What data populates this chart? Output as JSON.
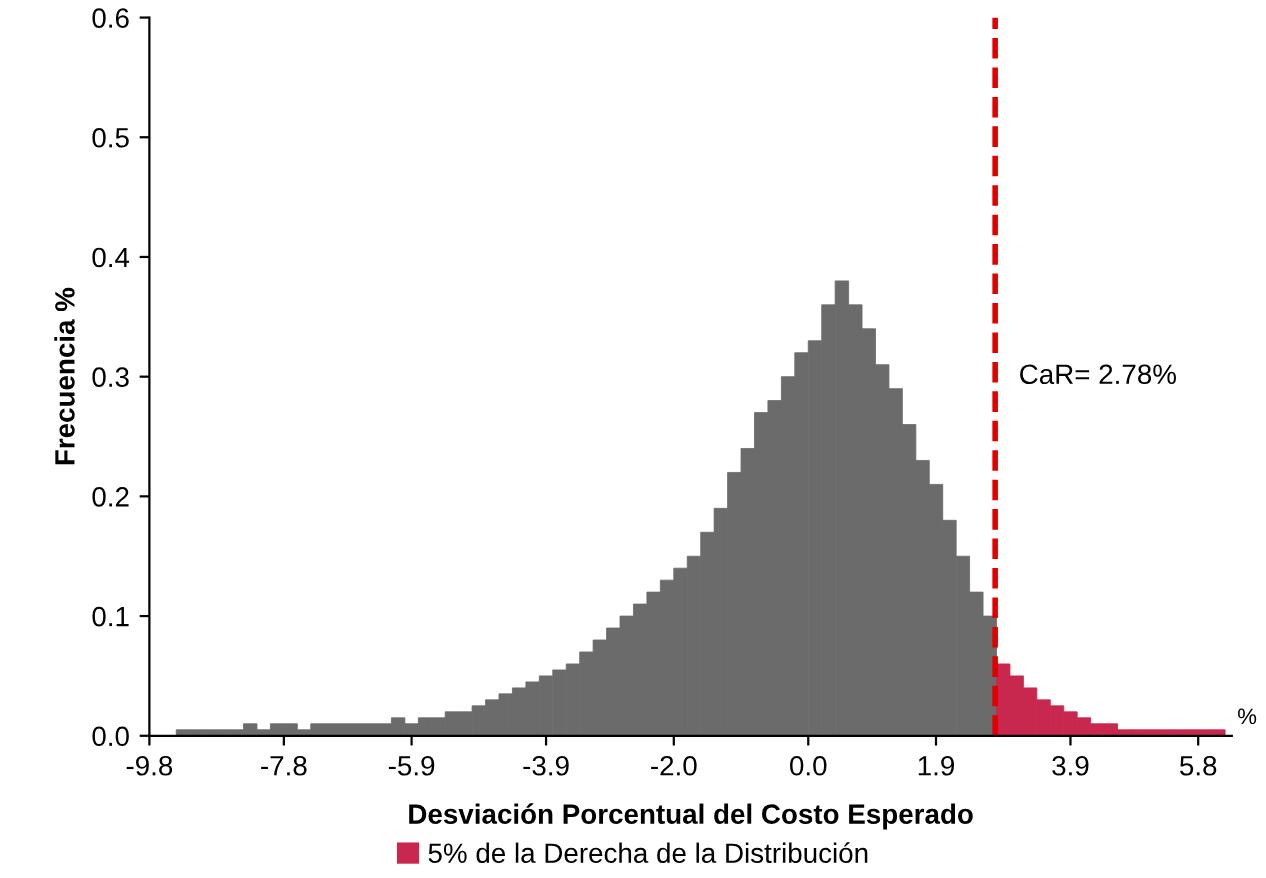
{
  "chart_data": {
    "type": "histogram",
    "xlabel": "Desviación Porcentual del Costo Esperado",
    "ylabel": "Frecuencia %",
    "bins": [
      -9.8,
      -9.6,
      -9.4,
      -9.2,
      -9.0,
      -8.8,
      -8.6,
      -8.4,
      -8.2,
      -8.0,
      -7.8,
      -7.6,
      -7.4,
      -7.2,
      -7.0,
      -6.8,
      -6.6,
      -6.4,
      -6.2,
      -6.0,
      -5.8,
      -5.6,
      -5.4,
      -5.2,
      -5.0,
      -4.8,
      -4.6,
      -4.4,
      -4.2,
      -4.0,
      -3.8,
      -3.6,
      -3.4,
      -3.2,
      -3.0,
      -2.8,
      -2.6,
      -2.4,
      -2.2,
      -2.0,
      -1.8,
      -1.6,
      -1.4,
      -1.2,
      -1.0,
      -0.8,
      -0.6,
      -0.4,
      -0.2,
      0.0,
      0.2,
      0.4,
      0.6,
      0.8,
      1.0,
      1.2,
      1.4,
      1.6,
      1.8,
      2.0,
      2.2,
      2.4,
      2.6,
      2.8,
      3.0,
      3.2,
      3.4,
      3.6,
      3.8,
      4.0,
      4.2,
      4.4,
      4.6,
      4.8,
      5.0,
      5.2,
      5.4,
      5.6,
      5.8,
      6.0,
      6.2
    ],
    "series": [
      {
        "color": "#6b6b6b",
        "values": [
          0,
          0,
          0.005,
          0.005,
          0.005,
          0.005,
          0.005,
          0.01,
          0.005,
          0.01,
          0.01,
          0.005,
          0.01,
          0.01,
          0.01,
          0.01,
          0.01,
          0.01,
          0.015,
          0.01,
          0.015,
          0.015,
          0.02,
          0.02,
          0.025,
          0.03,
          0.035,
          0.04,
          0.045,
          0.05,
          0.055,
          0.06,
          0.07,
          0.08,
          0.09,
          0.1,
          0.11,
          0.12,
          0.13,
          0.14,
          0.15,
          0.17,
          0.19,
          0.22,
          0.24,
          0.27,
          0.28,
          0.3,
          0.32,
          0.33,
          0.36,
          0.38,
          0.36,
          0.34,
          0.31,
          0.29,
          0.26,
          0.23,
          0.21,
          0.18,
          0.15,
          0.12,
          0.1,
          null,
          null,
          null,
          null,
          null,
          null,
          null,
          null,
          null,
          null,
          null,
          null,
          null,
          null,
          null,
          null,
          null
        ]
      },
      {
        "name": "5% de la Derecha de la Distribución",
        "color": "#c8284e",
        "values": [
          null,
          null,
          null,
          null,
          null,
          null,
          null,
          null,
          null,
          null,
          null,
          null,
          null,
          null,
          null,
          null,
          null,
          null,
          null,
          null,
          null,
          null,
          null,
          null,
          null,
          null,
          null,
          null,
          null,
          null,
          null,
          null,
          null,
          null,
          null,
          null,
          null,
          null,
          null,
          null,
          null,
          null,
          null,
          null,
          null,
          null,
          null,
          null,
          null,
          null,
          null,
          null,
          null,
          null,
          null,
          null,
          null,
          null,
          null,
          null,
          null,
          null,
          null,
          0.06,
          0.05,
          0.04,
          0.03,
          0.025,
          0.02,
          0.015,
          0.01,
          0.01,
          0.005,
          0.005,
          0.005,
          0.005,
          0.005,
          0.005,
          0.005,
          0.005
        ]
      }
    ],
    "xlim": [
      -9.8,
      6.3
    ],
    "xticks": [
      -9.8,
      -7.8,
      -5.9,
      -3.9,
      {
        "value": -2.0,
        "label": "-2.0"
      },
      {
        "value": 0,
        "label": "0.0"
      },
      1.9,
      3.9,
      5.8
    ],
    "ylim": [
      0,
      0.6
    ],
    "yticks": [
      {
        "value": 0,
        "label": "0.0"
      },
      0.1,
      0.2,
      0.3,
      0.4,
      0.5,
      0.6
    ],
    "ref_lines": [
      {
        "axis": "x",
        "value": 2.78,
        "label": "CaR= 2.78%",
        "color": "#e00000",
        "line_style": "dashed"
      }
    ],
    "annotations": [
      "%"
    ],
    "legend": "bottom",
    "grid": false
  }
}
